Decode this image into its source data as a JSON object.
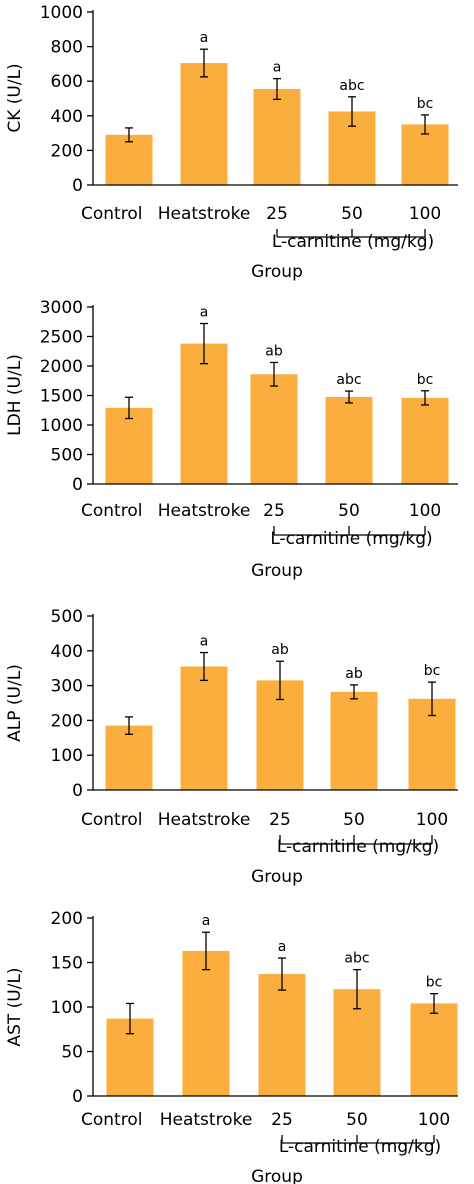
{
  "colors": {
    "bar": "#F9AE3D",
    "axis": "#000000"
  },
  "chart_data": [
    {
      "type": "bar",
      "ylabel": "CK (U/L)",
      "xlabel": "Group",
      "group_label": "L-carnitine (mg/kg)",
      "categories": [
        "Control",
        "Heatstroke",
        "25",
        "50",
        "100"
      ],
      "values": [
        290,
        705,
        555,
        425,
        350
      ],
      "errors": [
        40,
        80,
        60,
        85,
        55
      ],
      "significance": [
        "",
        "a",
        "a",
        "abc",
        "bc"
      ],
      "ylim": [
        0,
        1000
      ],
      "yticks": [
        "0",
        "200",
        "400",
        "600",
        "800",
        "1000"
      ]
    },
    {
      "type": "bar",
      "ylabel": "LDH (U/L)",
      "xlabel": "Group",
      "group_label": "L-carnitine (mg/kg)",
      "categories": [
        "Control",
        "Heatstroke",
        "25",
        "50",
        "100"
      ],
      "values": [
        1290,
        2380,
        1860,
        1475,
        1460
      ],
      "errors": [
        180,
        340,
        200,
        100,
        120
      ],
      "significance": [
        "",
        "a",
        "ab",
        "abc",
        "bc"
      ],
      "ylim": [
        0,
        3000
      ],
      "yticks": [
        "0",
        "500",
        "1000",
        "1500",
        "2000",
        "2500",
        "3000"
      ]
    },
    {
      "type": "bar",
      "ylabel": "ALP (U/L)",
      "xlabel": "Group",
      "group_label": "L-carnitine (mg/kg)",
      "categories": [
        "Control",
        "Heatstroke",
        "25",
        "50",
        "100"
      ],
      "values": [
        185,
        355,
        315,
        282,
        262
      ],
      "errors": [
        25,
        40,
        55,
        20,
        48
      ],
      "significance": [
        "",
        "a",
        "ab",
        "ab",
        "bc"
      ],
      "ylim": [
        0,
        500
      ],
      "yticks": [
        "0",
        "100",
        "200",
        "300",
        "400",
        "500"
      ]
    },
    {
      "type": "bar",
      "ylabel": "AST (U/L)",
      "xlabel": "Group",
      "group_label": "L-carnitine (mg/kg)",
      "categories": [
        "Control",
        "Heatstroke",
        "25",
        "50",
        "100"
      ],
      "values": [
        87,
        163,
        137,
        120,
        104
      ],
      "errors": [
        17,
        21,
        18,
        22,
        11
      ],
      "significance": [
        "",
        "a",
        "a",
        "abc",
        "bc"
      ],
      "ylim": [
        0,
        200
      ],
      "yticks": [
        "0",
        "50",
        "100",
        "150",
        "200"
      ]
    }
  ]
}
